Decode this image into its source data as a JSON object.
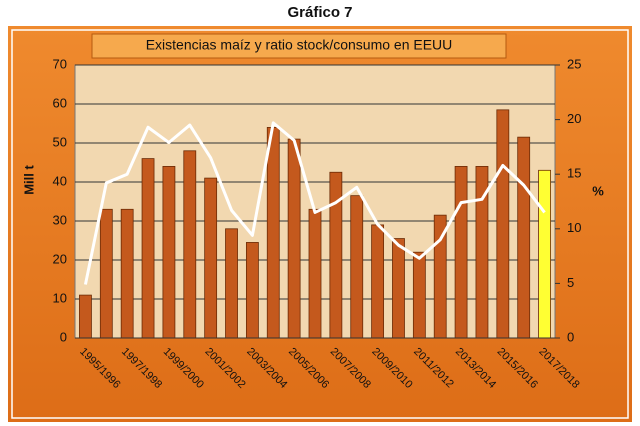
{
  "chart_data": {
    "type": "bar_line",
    "heading": "Gráfico 7",
    "title": "Existencias maíz y ratio stock/consumo en EEUU",
    "ylabel": "Mill t",
    "y2label": "%",
    "categories": [
      "1995/1996",
      null,
      "1997/1998",
      null,
      "1999/2000",
      null,
      "2001/2002",
      null,
      "2003/2004",
      null,
      "2005/2006",
      null,
      "2007/2008",
      null,
      "2009/2010",
      null,
      "2011/2012",
      null,
      "2013/2014",
      null,
      "2015/2016",
      null,
      "2017/2018"
    ],
    "series": [
      {
        "type": "bar",
        "color": "#c4591d",
        "colors": [
          "#c4591d",
          "#c4591d",
          "#c4591d",
          "#c4591d",
          "#c4591d",
          "#c4591d",
          "#c4591d",
          "#c4591d",
          "#c4591d",
          "#c4591d",
          "#c4591d",
          "#c4591d",
          "#c4591d",
          "#c4591d",
          "#c4591d",
          "#c4591d",
          "#c4591d",
          "#c4591d",
          "#c4591d",
          "#c4591d",
          "#c4591d",
          "#c4591d",
          "#ffff33"
        ],
        "values": [
          11,
          33,
          33,
          46,
          44,
          48,
          41,
          28,
          24.5,
          54,
          51,
          33,
          42.5,
          36.5,
          29,
          25.5,
          22,
          31.5,
          44,
          44,
          58.5,
          51.5,
          43
        ]
      },
      {
        "type": "line",
        "axis": "y2",
        "color": "#ffffff",
        "values": [
          4.9,
          14.2,
          15,
          19.3,
          17.9,
          19.5,
          16.5,
          11.7,
          9.4,
          19.7,
          18.1,
          11.5,
          12.4,
          13.8,
          10.4,
          8.5,
          7.3,
          9,
          12.4,
          12.7,
          15.8,
          14,
          11.5
        ]
      }
    ],
    "ylim": [
      0,
      70
    ],
    "yticks": [
      0,
      10,
      20,
      30,
      40,
      50,
      60,
      70
    ],
    "y2lim": [
      0,
      25
    ],
    "y2ticks": [
      0,
      5,
      10,
      15,
      20,
      25
    ],
    "grid": true
  }
}
